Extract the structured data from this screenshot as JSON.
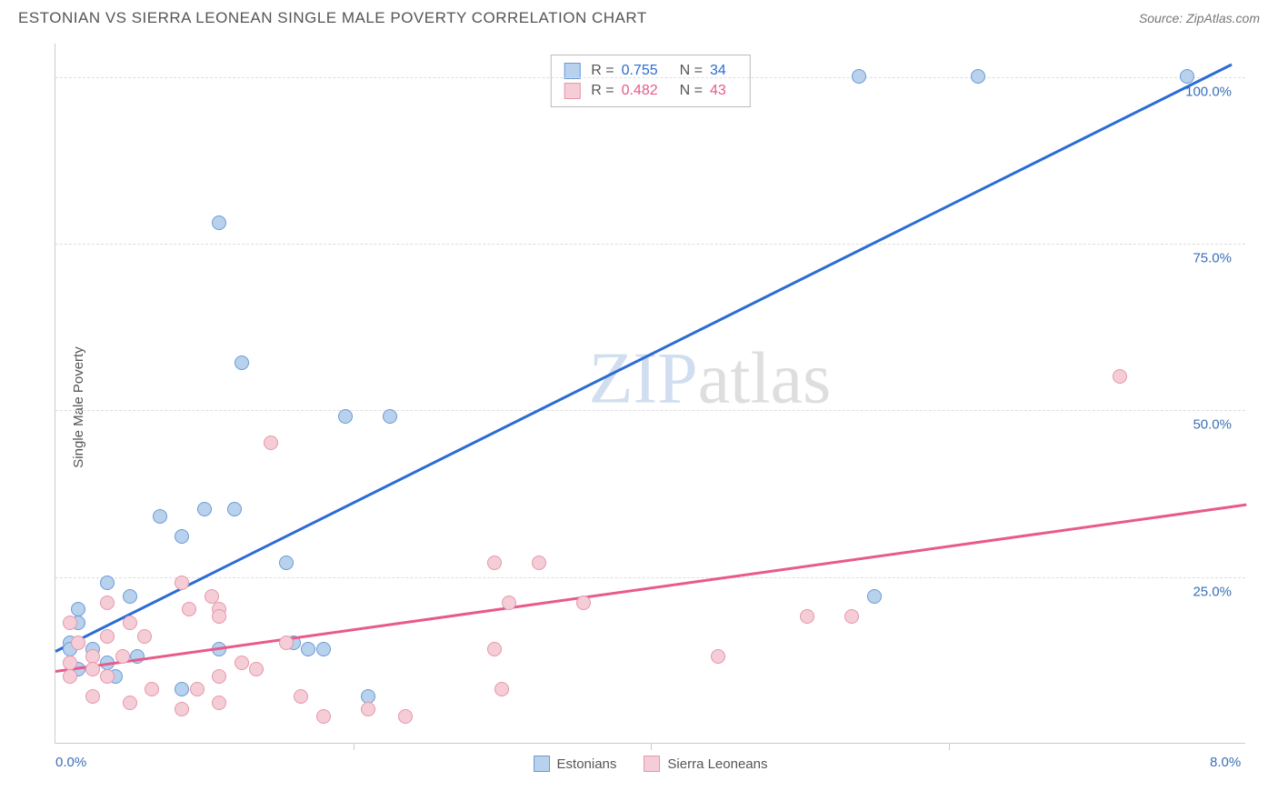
{
  "title": "ESTONIAN VS SIERRA LEONEAN SINGLE MALE POVERTY CORRELATION CHART",
  "source_label": "Source: ZipAtlas.com",
  "ylabel": "Single Male Poverty",
  "watermark_zip": "ZIP",
  "watermark_atlas": "atlas",
  "chart": {
    "type": "scatter",
    "xlim": [
      0,
      8
    ],
    "ylim": [
      0,
      105
    ],
    "x_ticks_major": [
      0,
      8
    ],
    "x_ticks_minor": [
      2,
      4,
      6
    ],
    "x_tick_labels": {
      "0": "0.0%",
      "8": "8.0%"
    },
    "y_gridlines": [
      25,
      50,
      75,
      100
    ],
    "y_tick_labels": {
      "25": "25.0%",
      "50": "50.0%",
      "75": "75.0%",
      "100": "100.0%"
    },
    "x_label_colors": {
      "0": "#3a6fb7",
      "8": "#3a6fb7"
    },
    "y_label_color": "#3a6fb7",
    "background_color": "#ffffff",
    "grid_color": "#dddddd",
    "axis_color": "#cccccc"
  },
  "series": [
    {
      "name": "Estonians",
      "fill_color": "#b8d1ec",
      "stroke_color": "#6a9bd8",
      "line_color": "#2b6cd4",
      "r": "0.755",
      "n": "34",
      "trend": {
        "x1": 0.0,
        "y1": 14,
        "x2": 7.9,
        "y2": 102
      },
      "points": [
        [
          5.4,
          100
        ],
        [
          6.2,
          100
        ],
        [
          7.6,
          100
        ],
        [
          5.5,
          22
        ],
        [
          1.1,
          78
        ],
        [
          1.25,
          57
        ],
        [
          1.95,
          49
        ],
        [
          2.25,
          49
        ],
        [
          0.7,
          34
        ],
        [
          1.0,
          35
        ],
        [
          1.2,
          35
        ],
        [
          0.85,
          31
        ],
        [
          1.55,
          27
        ],
        [
          0.35,
          24
        ],
        [
          0.15,
          20
        ],
        [
          0.5,
          22
        ],
        [
          0.15,
          18
        ],
        [
          0.1,
          15
        ],
        [
          0.1,
          14
        ],
        [
          0.25,
          14
        ],
        [
          1.1,
          14
        ],
        [
          0.35,
          12
        ],
        [
          0.55,
          13
        ],
        [
          0.15,
          11
        ],
        [
          0.4,
          10
        ],
        [
          1.6,
          15
        ],
        [
          1.7,
          14
        ],
        [
          1.8,
          14
        ],
        [
          0.85,
          8
        ],
        [
          2.1,
          7
        ]
      ]
    },
    {
      "name": "Sierra Leoneans",
      "fill_color": "#f5cdd7",
      "stroke_color": "#e796ab",
      "line_color": "#e85a8a",
      "r": "0.482",
      "n": "43",
      "trend": {
        "x1": 0.0,
        "y1": 11,
        "x2": 8.0,
        "y2": 36
      },
      "points": [
        [
          7.15,
          55
        ],
        [
          1.45,
          45
        ],
        [
          2.95,
          27
        ],
        [
          3.25,
          27
        ],
        [
          3.05,
          21
        ],
        [
          3.55,
          21
        ],
        [
          4.45,
          13
        ],
        [
          0.85,
          24
        ],
        [
          1.05,
          22
        ],
        [
          1.1,
          20
        ],
        [
          0.9,
          20
        ],
        [
          1.1,
          19
        ],
        [
          0.5,
          18
        ],
        [
          0.35,
          16
        ],
        [
          0.1,
          18
        ],
        [
          0.25,
          13
        ],
        [
          0.1,
          12
        ],
        [
          0.45,
          13
        ],
        [
          0.65,
          8
        ],
        [
          0.1,
          10
        ],
        [
          0.35,
          10
        ],
        [
          0.95,
          8
        ],
        [
          1.1,
          10
        ],
        [
          1.25,
          12
        ],
        [
          1.35,
          11
        ],
        [
          0.5,
          6
        ],
        [
          0.85,
          5
        ],
        [
          1.1,
          6
        ],
        [
          1.65,
          7
        ],
        [
          1.8,
          4
        ],
        [
          2.1,
          5
        ],
        [
          2.35,
          4
        ],
        [
          3.0,
          8
        ],
        [
          0.25,
          7
        ],
        [
          0.6,
          16
        ],
        [
          0.35,
          21
        ],
        [
          0.15,
          15
        ],
        [
          0.25,
          11
        ],
        [
          1.55,
          15
        ],
        [
          5.35,
          19
        ],
        [
          5.05,
          19
        ],
        [
          2.95,
          14
        ]
      ]
    }
  ],
  "stats_labels": {
    "r": "R =",
    "n": "N ="
  }
}
